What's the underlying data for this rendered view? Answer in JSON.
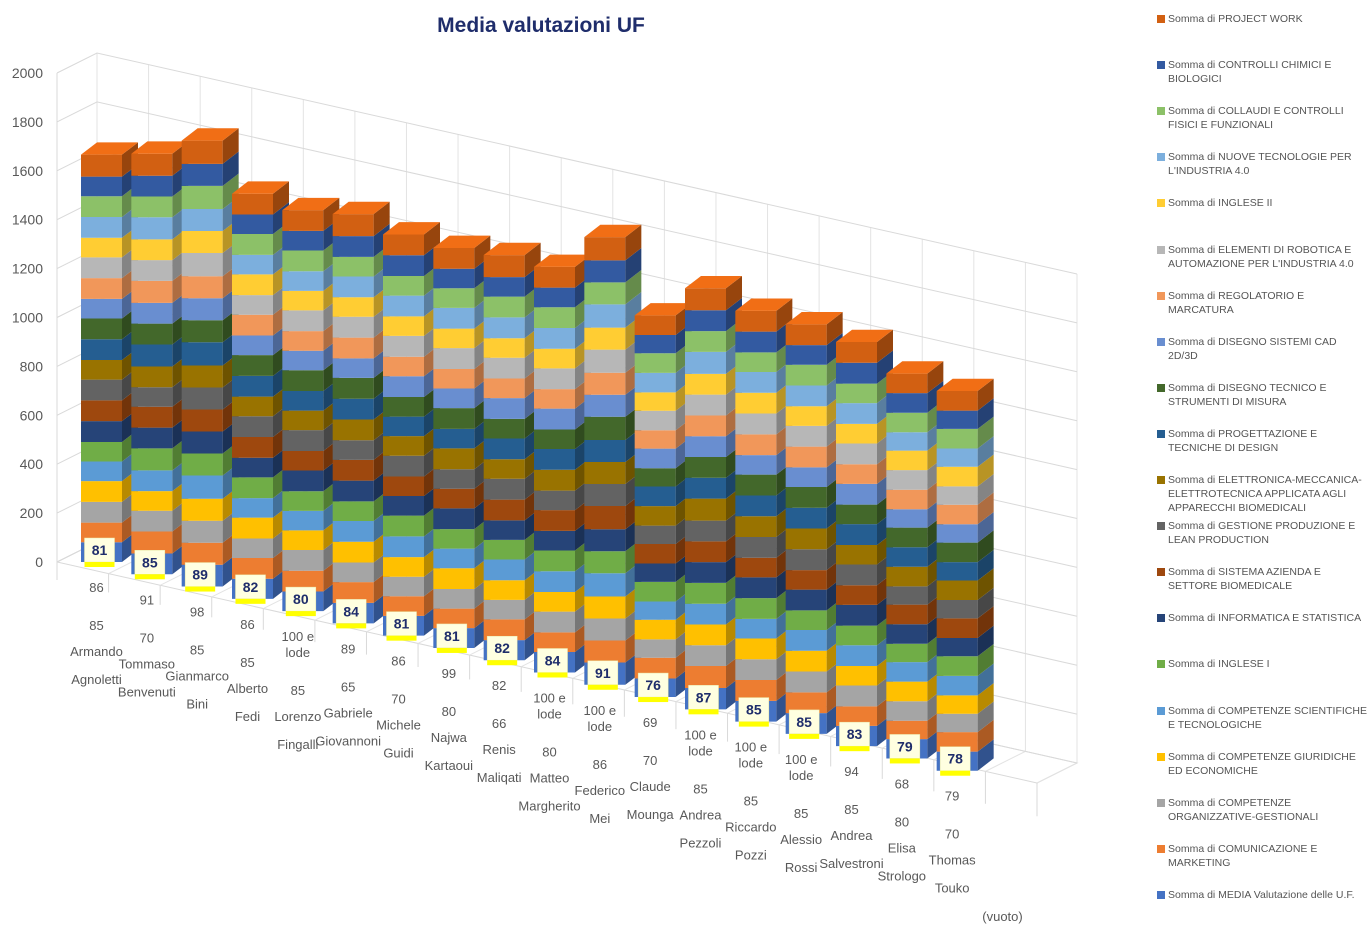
{
  "chart_data": {
    "type": "bar",
    "stacked": true,
    "three_d": true,
    "title": "Media valutazioni UF",
    "ylim": [
      0,
      2000
    ],
    "yticks": [
      0,
      200,
      400,
      600,
      800,
      1000,
      1200,
      1400,
      1600,
      1800,
      2000
    ],
    "grid": true,
    "legend_position": "right",
    "categories": [
      {
        "levels": [
          "86",
          "85",
          "Armando",
          "Agnoletti"
        ]
      },
      {
        "levels": [
          "91",
          "70",
          "Tommaso",
          "Benvenuti"
        ]
      },
      {
        "levels": [
          "98",
          "85",
          "Gianmarco",
          "Bini"
        ]
      },
      {
        "levels": [
          "86",
          "85",
          "Alberto",
          "Fedi"
        ]
      },
      {
        "levels": [
          "100 e lode",
          "85",
          "Lorenzo",
          "Fingalli"
        ]
      },
      {
        "levels": [
          "89",
          "65",
          "Gabriele",
          "Giovannoni"
        ]
      },
      {
        "levels": [
          "86",
          "70",
          "Michele",
          "Guidi"
        ]
      },
      {
        "levels": [
          "99",
          "80",
          "Najwa",
          "Kartaoui"
        ]
      },
      {
        "levels": [
          "82",
          "66",
          "Renis",
          "Maliqati"
        ]
      },
      {
        "levels": [
          "100 e lode",
          "80",
          "Matteo",
          "Margherito"
        ]
      },
      {
        "levels": [
          "100 e lode",
          "86",
          "Federico",
          "Mei"
        ]
      },
      {
        "levels": [
          "69",
          "70",
          "Claude",
          "Mounga"
        ]
      },
      {
        "levels": [
          "100 e lode",
          "85",
          "Andrea",
          "Pezzoli"
        ]
      },
      {
        "levels": [
          "100 e lode",
          "85",
          "Riccardo",
          "Pozzi"
        ]
      },
      {
        "levels": [
          "100 e lode",
          "85",
          "Alessio",
          "Rossi"
        ]
      },
      {
        "levels": [
          "94",
          "85",
          "Andrea",
          "Salvestroni"
        ]
      },
      {
        "levels": [
          "68",
          "80",
          "Elisa",
          "Strologo"
        ]
      },
      {
        "levels": [
          "79",
          "70",
          "Thomas",
          "Touko"
        ]
      },
      {
        "levels": [
          "(vuoto)"
        ]
      }
    ],
    "labels_on_bars": [
      "81",
      "85",
      "89",
      "82",
      "80",
      "84",
      "81",
      "81",
      "82",
      "84",
      "91",
      "76",
      "87",
      "85",
      "85",
      "83",
      "79",
      "78",
      ""
    ],
    "series": [
      {
        "name": "Somma di MEDIA Valutazione delle U.F.",
        "color": "#4472C4",
        "values": [
          81,
          85,
          89,
          82,
          80,
          84,
          81,
          81,
          82,
          84,
          91,
          76,
          87,
          85,
          85,
          83,
          79,
          78,
          0
        ]
      },
      {
        "name": "Somma di COMUNICAZIONE E MARKETING",
        "color": "#ED7D31",
        "values": [
          80,
          90,
          90,
          85,
          85,
          85,
          80,
          80,
          85,
          80,
          90,
          85,
          90,
          85,
          85,
          80,
          75,
          80,
          0
        ]
      },
      {
        "name": "Somma di COMPETENZE ORGANIZZATIVE-GESTIONALI",
        "color": "#A5A5A5",
        "values": [
          85,
          85,
          90,
          80,
          85,
          80,
          80,
          80,
          80,
          85,
          90,
          75,
          85,
          85,
          85,
          85,
          80,
          75,
          0
        ]
      },
      {
        "name": "Somma di COMPETENZE GIURIDICHE ED ECONOMICHE",
        "color": "#FFC000",
        "values": [
          85,
          80,
          90,
          85,
          80,
          85,
          80,
          85,
          80,
          80,
          90,
          80,
          85,
          85,
          85,
          80,
          80,
          75,
          0
        ]
      },
      {
        "name": "Somma di COMPETENZE SCIENTIFICHE E TECNOLOGICHE",
        "color": "#5B9BD5",
        "values": [
          80,
          85,
          95,
          80,
          80,
          85,
          85,
          80,
          85,
          85,
          95,
          75,
          85,
          80,
          85,
          85,
          80,
          80,
          0
        ]
      },
      {
        "name": "Somma di INGLESE I",
        "color": "#70AD47",
        "values": [
          80,
          90,
          90,
          85,
          80,
          80,
          85,
          80,
          80,
          85,
          90,
          80,
          85,
          85,
          80,
          80,
          75,
          80,
          0
        ]
      },
      {
        "name": "Somma di INFORMATICA E STATISTICA",
        "color": "#264478",
        "values": [
          85,
          85,
          90,
          80,
          85,
          85,
          80,
          85,
          80,
          80,
          90,
          75,
          85,
          85,
          85,
          85,
          80,
          75,
          0
        ]
      },
      {
        "name": "Somma di SISTEMA AZIENDA E SETTORE BIOMEDICALE",
        "color": "#9E480E",
        "values": [
          85,
          85,
          90,
          85,
          80,
          85,
          80,
          80,
          85,
          85,
          95,
          80,
          85,
          80,
          80,
          80,
          80,
          80,
          0
        ]
      },
      {
        "name": "Somma di GESTIONE PRODUZIONE E LEAN PRODUCTION",
        "color": "#636363",
        "values": [
          85,
          80,
          90,
          85,
          85,
          80,
          85,
          80,
          85,
          80,
          90,
          75,
          85,
          85,
          85,
          85,
          75,
          75,
          0
        ]
      },
      {
        "name": "Somma di ELETTRONICA-MECCANICA-ELETTROTECNICA APPLICATA AGLI APPARECCHI BIOMEDICALI",
        "color": "#997300",
        "values": [
          80,
          85,
          90,
          80,
          80,
          85,
          80,
          85,
          80,
          85,
          90,
          80,
          90,
          85,
          85,
          80,
          80,
          80,
          0
        ]
      },
      {
        "name": "Somma di PROGETTAZIONE E TECNICHE DI DESIGN",
        "color": "#255E91",
        "values": [
          85,
          90,
          95,
          85,
          80,
          85,
          80,
          80,
          85,
          85,
          90,
          80,
          85,
          85,
          85,
          85,
          80,
          75,
          0
        ]
      },
      {
        "name": "Somma di DISEGNO TECNICO E STRUMENTI DI MISURA",
        "color": "#43682B",
        "values": [
          85,
          85,
          90,
          85,
          85,
          85,
          80,
          85,
          80,
          80,
          95,
          75,
          85,
          85,
          85,
          80,
          80,
          80,
          0
        ]
      },
      {
        "name": "Somma di DISEGNO SISTEMI CAD 2D/3D",
        "color": "#698ED0",
        "values": [
          80,
          85,
          90,
          80,
          80,
          80,
          85,
          80,
          85,
          85,
          90,
          80,
          85,
          80,
          80,
          85,
          75,
          75,
          0
        ]
      },
      {
        "name": "Somma di REGOLATORIO E MARCATURA",
        "color": "#F1975A",
        "values": [
          85,
          90,
          90,
          85,
          80,
          85,
          80,
          80,
          80,
          80,
          90,
          75,
          85,
          85,
          85,
          80,
          80,
          80,
          0
        ]
      },
      {
        "name": "Somma di ELEMENTI DI ROBOTICA E AUTOMAZIONE PER L'INDUSTRIA 4.0",
        "color": "#B7B7B7",
        "values": [
          85,
          85,
          95,
          80,
          85,
          85,
          85,
          85,
          85,
          85,
          95,
          80,
          85,
          85,
          85,
          85,
          80,
          75,
          0
        ]
      },
      {
        "name": "Somma di INGLESE II",
        "color": "#FFCD33",
        "values": [
          80,
          85,
          90,
          85,
          80,
          80,
          80,
          80,
          80,
          80,
          90,
          75,
          85,
          85,
          80,
          80,
          80,
          80,
          0
        ]
      },
      {
        "name": "Somma di NUOVE TECNOLOGIE PER L'INDUSTRIA 4.0",
        "color": "#7CAFDD",
        "values": [
          85,
          90,
          90,
          80,
          80,
          85,
          85,
          85,
          85,
          85,
          95,
          80,
          90,
          85,
          85,
          85,
          75,
          75,
          0
        ]
      },
      {
        "name": "Somma di COLLAUDI E CONTROLLI FISICI E FUNZIONALI",
        "color": "#8CC168",
        "values": [
          85,
          85,
          95,
          85,
          85,
          80,
          80,
          80,
          85,
          85,
          90,
          80,
          85,
          80,
          85,
          80,
          80,
          80,
          0
        ]
      },
      {
        "name": "Somma di CONTROLLI CHIMICI E BIOLOGICI",
        "color": "#335AA1",
        "values": [
          80,
          85,
          90,
          80,
          80,
          85,
          85,
          80,
          80,
          80,
          90,
          75,
          85,
          85,
          80,
          85,
          80,
          75,
          0
        ]
      },
      {
        "name": "Somma di PROJECT WORK",
        "color": "#D26012",
        "values": [
          90,
          90,
          95,
          85,
          85,
          90,
          85,
          85,
          90,
          85,
          95,
          80,
          90,
          85,
          85,
          85,
          80,
          80,
          0
        ]
      }
    ]
  }
}
